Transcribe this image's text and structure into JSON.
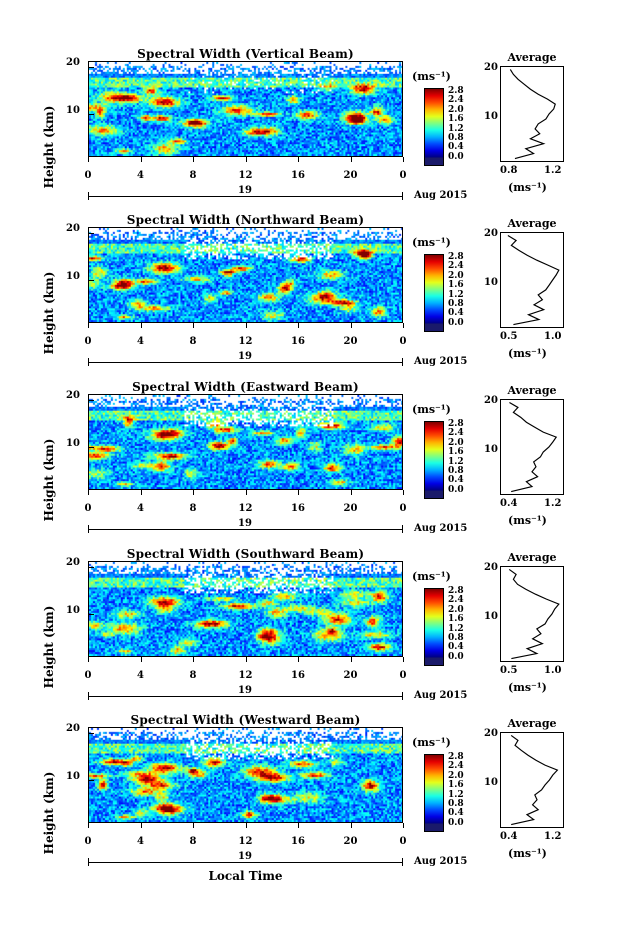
{
  "figure": {
    "xaxis_title": "Local Time",
    "ylabel": "Height (km)",
    "unit_label": "(ms⁻¹)",
    "avg_title": "Average",
    "avg_unit": "(ms⁻¹)",
    "day_label": "19",
    "month_label": "Aug 2015",
    "x_ticks": [
      "0",
      "4",
      "8",
      "12",
      "16",
      "20",
      "0"
    ],
    "y_ticks": [
      "20",
      "10"
    ],
    "colorbar_ticks": [
      "2.8",
      "2.4",
      "2.0",
      "1.6",
      "1.2",
      "0.8",
      "0.4",
      "0.0"
    ]
  },
  "chart_data": [
    {
      "type": "heatmap",
      "title": "Spectral Width (Vertical Beam)",
      "xlabel": "Local Time",
      "ylabel": "Height (km)",
      "xlim": [
        0,
        24
      ],
      "ylim": [
        1.5,
        20.5
      ],
      "clim": [
        0.0,
        3.0
      ],
      "x_ticks": [
        0,
        4,
        8,
        12,
        16,
        20,
        24
      ],
      "y_ticks": [
        10,
        20
      ],
      "colorbar_ticks": [
        2.8,
        2.4,
        2.0,
        1.6,
        1.2,
        0.8,
        0.4,
        0.0
      ],
      "average_profile": {
        "title": "Average",
        "xlabel": "(ms⁻¹)",
        "x_ticks": [
          "0.8",
          "1.2"
        ],
        "xlim": [
          0.6,
          1.4
        ],
        "height_km": [
          2,
          3,
          4,
          5,
          6,
          7,
          8,
          9,
          10,
          11,
          12,
          13,
          14,
          15,
          16,
          17,
          18,
          19,
          20
        ],
        "width": [
          0.78,
          1.02,
          0.92,
          1.15,
          0.98,
          1.1,
          1.04,
          1.08,
          1.18,
          1.22,
          1.28,
          1.3,
          1.2,
          1.08,
          0.98,
          0.9,
          0.82,
          0.76,
          0.72
        ]
      }
    },
    {
      "type": "heatmap",
      "title": "Spectral Width (Northward Beam)",
      "xlabel": "Local Time",
      "ylabel": "Height (km)",
      "xlim": [
        0,
        24
      ],
      "ylim": [
        1.5,
        20.5
      ],
      "clim": [
        0.0,
        3.0
      ],
      "x_ticks": [
        0,
        4,
        8,
        12,
        16,
        20,
        24
      ],
      "y_ticks": [
        10,
        20
      ],
      "colorbar_ticks": [
        2.8,
        2.4,
        2.0,
        1.6,
        1.2,
        0.8,
        0.4,
        0.0
      ],
      "average_profile": {
        "title": "Average",
        "xlabel": "(ms⁻¹)",
        "x_ticks": [
          "0.5",
          "1.0"
        ],
        "xlim": [
          0.4,
          1.3
        ],
        "height_km": [
          2,
          3,
          4,
          5,
          6,
          7,
          8,
          9,
          10,
          11,
          12,
          13,
          14,
          15,
          16,
          17,
          18,
          19,
          20
        ],
        "width": [
          0.58,
          0.95,
          0.8,
          1.02,
          0.88,
          1.0,
          0.94,
          1.05,
          1.1,
          1.15,
          1.2,
          1.24,
          1.08,
          0.92,
          0.78,
          0.66,
          0.55,
          0.62,
          0.5
        ]
      }
    },
    {
      "type": "heatmap",
      "title": "Spectral Width (Eastward Beam)",
      "xlabel": "Local Time",
      "ylabel": "Height (km)",
      "xlim": [
        0,
        24
      ],
      "ylim": [
        1.5,
        20.5
      ],
      "clim": [
        0.0,
        3.0
      ],
      "x_ticks": [
        0,
        4,
        8,
        12,
        16,
        20,
        24
      ],
      "y_ticks": [
        10,
        20
      ],
      "colorbar_ticks": [
        2.8,
        2.4,
        2.0,
        1.6,
        1.2,
        0.8,
        0.4,
        0.0
      ],
      "average_profile": {
        "title": "Average",
        "xlabel": "(ms⁻¹)",
        "x_ticks": [
          "0.4",
          "1.2"
        ],
        "xlim": [
          0.3,
          1.4
        ],
        "height_km": [
          2,
          3,
          4,
          5,
          6,
          7,
          8,
          9,
          10,
          11,
          12,
          13,
          14,
          15,
          16,
          17,
          18,
          19,
          20
        ],
        "width": [
          0.48,
          0.85,
          0.75,
          0.95,
          0.85,
          0.92,
          0.88,
          1.0,
          1.05,
          1.15,
          1.22,
          1.28,
          1.05,
          0.9,
          0.75,
          0.65,
          0.52,
          0.6,
          0.45
        ]
      }
    },
    {
      "type": "heatmap",
      "title": "Spectral Width (Southward Beam)",
      "xlabel": "Local Time",
      "ylabel": "Height (km)",
      "xlim": [
        0,
        24
      ],
      "ylim": [
        1.5,
        20.5
      ],
      "clim": [
        0.0,
        3.0
      ],
      "x_ticks": [
        0,
        4,
        8,
        12,
        16,
        20,
        24
      ],
      "y_ticks": [
        10,
        20
      ],
      "colorbar_ticks": [
        2.8,
        2.4,
        2.0,
        1.6,
        1.2,
        0.8,
        0.4,
        0.0
      ],
      "average_profile": {
        "title": "Average",
        "xlabel": "(ms⁻¹)",
        "x_ticks": [
          "0.5",
          "1.0"
        ],
        "xlim": [
          0.4,
          1.3
        ],
        "height_km": [
          2,
          3,
          4,
          5,
          6,
          7,
          8,
          9,
          10,
          11,
          12,
          13,
          14,
          15,
          16,
          17,
          18,
          19,
          20
        ],
        "width": [
          0.55,
          0.92,
          0.78,
          1.0,
          0.86,
          0.98,
          0.92,
          1.04,
          1.08,
          1.14,
          1.18,
          1.24,
          1.06,
          0.9,
          0.76,
          0.64,
          0.58,
          0.62,
          0.52
        ]
      }
    },
    {
      "type": "heatmap",
      "title": "Spectral Width (Westward Beam)",
      "xlabel": "Local Time",
      "ylabel": "Height (km)",
      "xlim": [
        0,
        24
      ],
      "ylim": [
        1.5,
        20.5
      ],
      "clim": [
        0.0,
        3.0
      ],
      "x_ticks": [
        0,
        4,
        8,
        12,
        16,
        20,
        24
      ],
      "y_ticks": [
        10,
        20
      ],
      "colorbar_ticks": [
        2.8,
        2.4,
        2.0,
        1.6,
        1.2,
        0.8,
        0.4,
        0.0
      ],
      "average_profile": {
        "title": "Average",
        "xlabel": "(ms⁻¹)",
        "x_ticks": [
          "0.4",
          "1.2"
        ],
        "xlim": [
          0.3,
          1.4
        ],
        "height_km": [
          2,
          3,
          4,
          5,
          6,
          7,
          8,
          9,
          10,
          11,
          12,
          13,
          14,
          15,
          16,
          17,
          18,
          19,
          20
        ],
        "width": [
          0.48,
          0.88,
          0.76,
          0.96,
          0.86,
          0.94,
          0.9,
          1.02,
          1.08,
          1.16,
          1.22,
          1.3,
          1.08,
          0.92,
          0.78,
          0.66,
          0.55,
          0.6,
          0.48
        ]
      }
    }
  ]
}
